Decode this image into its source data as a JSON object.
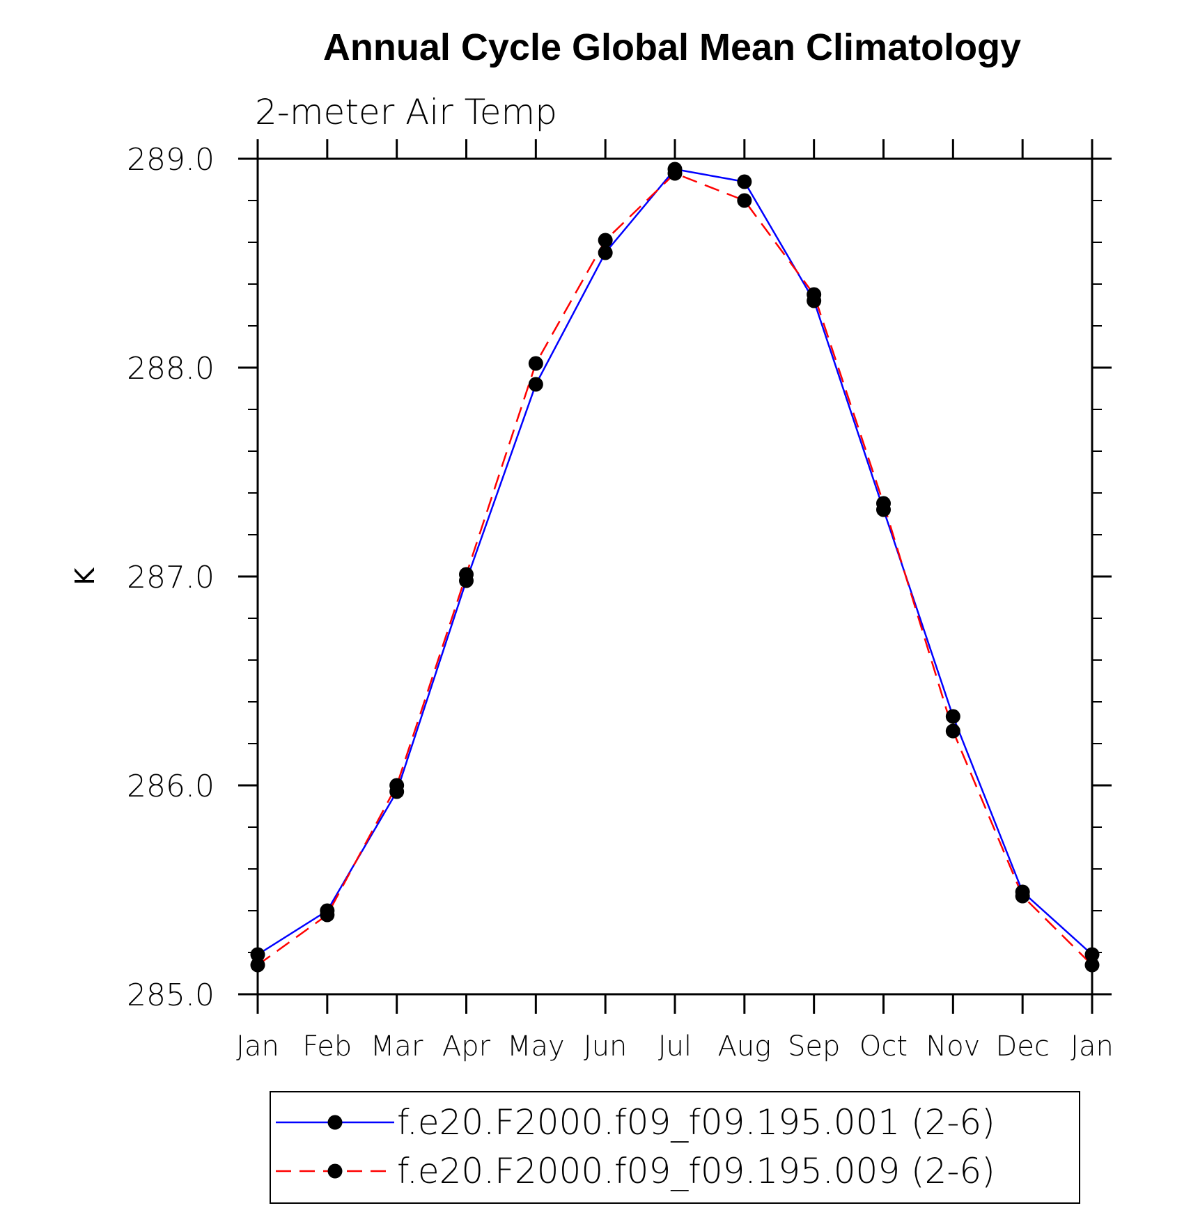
{
  "chart_data": {
    "type": "line",
    "title": "Annual Cycle Global Mean Climatology",
    "subtitle": "2-meter Air Temp",
    "xlabel": "",
    "ylabel": "K",
    "categories": [
      "Jan",
      "Feb",
      "Mar",
      "Apr",
      "May",
      "Jun",
      "Jul",
      "Aug",
      "Sep",
      "Oct",
      "Nov",
      "Dec",
      "Jan"
    ],
    "ylim": [
      285.0,
      289.0
    ],
    "yticks": [
      285.0,
      286.0,
      287.0,
      288.0,
      289.0
    ],
    "ytick_labels": [
      "285.0",
      "286.0",
      "287.0",
      "288.0",
      "289.0"
    ],
    "grid": false,
    "legend_position": "bottom",
    "series": [
      {
        "name": "f.e20.F2000.f09_f09.195.001 (2-6)",
        "color": "#0000ff",
        "dash": "solid",
        "marker": "circle",
        "values": [
          285.19,
          285.4,
          285.97,
          286.98,
          287.92,
          288.55,
          288.95,
          288.89,
          288.32,
          287.32,
          286.33,
          285.49,
          285.19
        ]
      },
      {
        "name": "f.e20.F2000.f09_f09.195.009 (2-6)",
        "color": "#ff0000",
        "dash": "dashed",
        "marker": "circle",
        "values": [
          285.14,
          285.38,
          286.0,
          287.01,
          288.02,
          288.61,
          288.93,
          288.8,
          288.35,
          287.35,
          286.26,
          285.47,
          285.14
        ]
      }
    ]
  }
}
